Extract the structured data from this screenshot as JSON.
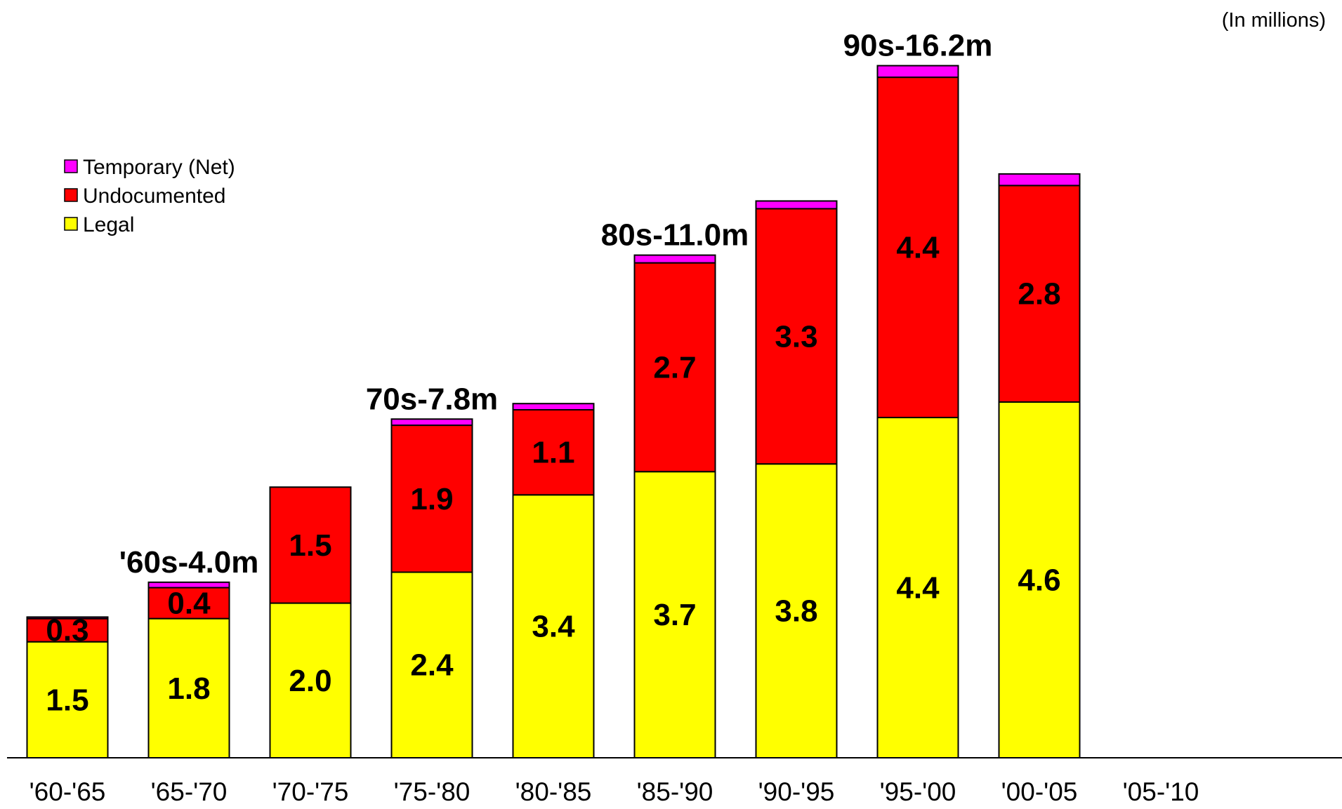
{
  "chart_data": {
    "type": "bar",
    "stacked": true,
    "units_note": "(In millions)",
    "categories": [
      "'60-'65",
      "'65-'70",
      "'70-'75",
      "'75-'80",
      "'80-'85",
      "'85-'90",
      "'90-'95",
      "'95-'00",
      "'00-'05",
      "'05-'10"
    ],
    "series": [
      {
        "name": "Legal",
        "color": "#FFFF00",
        "values": [
          1.5,
          1.8,
          2.0,
          2.4,
          3.4,
          3.7,
          3.8,
          4.4,
          4.6,
          null
        ],
        "labels": [
          "1.5",
          "1.8",
          "2.0",
          "2.4",
          "3.4",
          "3.7",
          "3.8",
          "4.4",
          "4.6",
          ""
        ]
      },
      {
        "name": "Undocumented",
        "color": "#FF0000",
        "values": [
          0.3,
          0.4,
          1.5,
          1.9,
          1.1,
          2.7,
          3.3,
          4.4,
          2.8,
          null
        ],
        "labels": [
          "0.3",
          "0.4",
          "1.5",
          "1.9",
          "1.1",
          "2.7",
          "3.3",
          "4.4",
          "2.8",
          ""
        ]
      },
      {
        "name": "Temporary (Net)",
        "color": "#FF00FF",
        "values": [
          0.02,
          0.07,
          0.0,
          0.08,
          0.08,
          0.1,
          0.1,
          0.15,
          0.15,
          null
        ],
        "labels": []
      }
    ],
    "totals": [
      {
        "text": "'60s-4.0m",
        "category": "'65-'70"
      },
      {
        "text": "70s-7.8m",
        "category": "'75-'80"
      },
      {
        "text": "80s-11.0m",
        "category": "'85-'90"
      },
      {
        "text": "90s-16.2m",
        "category": "'95-'00"
      }
    ],
    "legend": {
      "items": [
        "Temporary (Net)",
        "Undocumented",
        "Legal"
      ],
      "position": "upper-left"
    },
    "ylim": [
      0,
      9.3
    ],
    "grid": false
  }
}
